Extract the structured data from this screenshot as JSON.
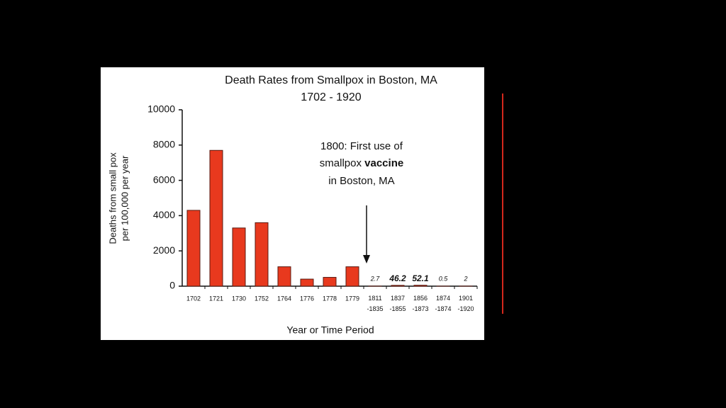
{
  "chart_data": {
    "type": "bar",
    "title": "Death Rates from Smallpox in Boston, MA",
    "subtitle": "1702 - 1920",
    "y_label": [
      "Deaths from small pox",
      "per 100,000 per year"
    ],
    "x_label": "Year or Time Period",
    "annotation": {
      "line1": "1800:  First use of",
      "line2": "smallpox",
      "line2_bold": "vaccine",
      "line3": "in Boston, MA"
    },
    "categories": [
      "1702",
      "1721",
      "1730",
      "1752",
      "1764",
      "1776",
      "1778",
      "1779",
      "1811 -1835",
      "1837 -1855",
      "1856 -1873",
      "1874 -1874",
      "1901 -1920"
    ],
    "values": [
      4300,
      7700,
      3300,
      3600,
      1100,
      400,
      500,
      1100,
      2.7,
      46.2,
      52.1,
      0.5,
      2
    ],
    "value_labels": [
      null,
      null,
      null,
      null,
      null,
      null,
      null,
      null,
      "2.7",
      "46.2",
      "52.1",
      "0.5",
      "2"
    ],
    "color": "#e8391e",
    "ylim": [
      0,
      10000
    ],
    "yticks": [
      0,
      2000,
      4000,
      6000,
      8000,
      10000
    ]
  }
}
